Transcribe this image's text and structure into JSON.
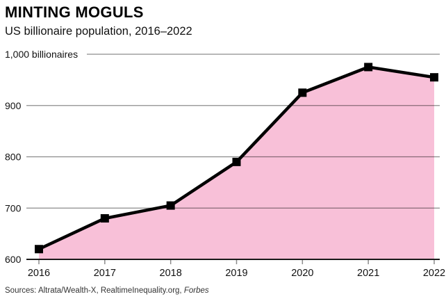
{
  "header": {
    "title": "MINTING MOGULS",
    "subtitle": "US billionaire population, 2016–2022"
  },
  "source": {
    "prefix": "Sources: Altrata/Wealth-X, RealtimeInequality.org, ",
    "italic": "Forbes"
  },
  "chart_data": {
    "type": "area",
    "title": "MINTING MOGULS",
    "subtitle": "US billionaire population, 2016–2022",
    "categories": [
      "2016",
      "2017",
      "2018",
      "2019",
      "2020",
      "2021",
      "2022"
    ],
    "values": [
      620,
      680,
      705,
      790,
      925,
      975,
      955
    ],
    "xlabel": "",
    "ylabel": "billionaires",
    "ylim": [
      600,
      1000
    ],
    "y_ticks": [
      {
        "value": 600,
        "label": "600"
      },
      {
        "value": 700,
        "label": "700"
      },
      {
        "value": 800,
        "label": "800"
      },
      {
        "value": 900,
        "label": "900"
      },
      {
        "value": 1000,
        "label": "1,000 billionaires"
      }
    ],
    "grid": true,
    "legend": "none",
    "marker_shape": "square",
    "colors": {
      "area_fill": "#f8c0d8",
      "line": "#000000",
      "marker": "#000000",
      "gridline": "rgba(0,0,0,0.45)",
      "axis": "#1a1a1a",
      "text": "#111111"
    }
  }
}
